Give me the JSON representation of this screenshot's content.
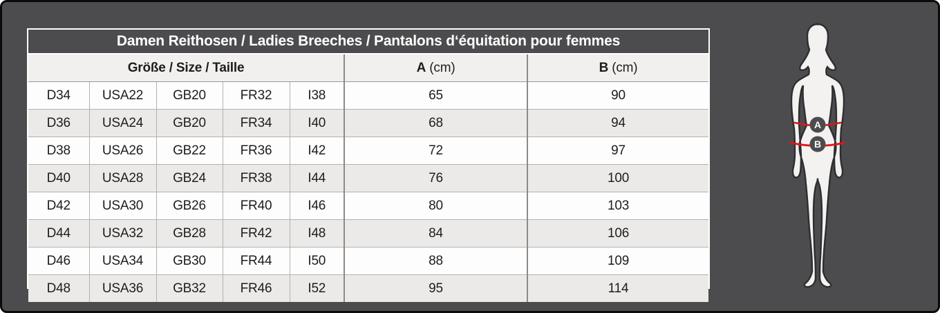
{
  "table": {
    "title": "Damen Reithosen / Ladies Breeches / Pantalons d‘équitation pour femmes",
    "header": {
      "size_label": "Größe / Size / Taille",
      "a_label": "A",
      "a_unit": "(cm)",
      "b_label": "B",
      "b_unit": "(cm)"
    },
    "rows": [
      {
        "d": "D34",
        "usa": "USA22",
        "gb": "GB20",
        "fr": "FR32",
        "i": "I38",
        "a": "65",
        "b": "90"
      },
      {
        "d": "D36",
        "usa": "USA24",
        "gb": "GB20",
        "fr": "FR34",
        "i": "I40",
        "a": "68",
        "b": "94"
      },
      {
        "d": "D38",
        "usa": "USA26",
        "gb": "GB22",
        "fr": "FR36",
        "i": "I42",
        "a": "72",
        "b": "97"
      },
      {
        "d": "D40",
        "usa": "USA28",
        "gb": "GB24",
        "fr": "FR38",
        "i": "I44",
        "a": "76",
        "b": "100"
      },
      {
        "d": "D42",
        "usa": "USA30",
        "gb": "GB26",
        "fr": "FR40",
        "i": "I46",
        "a": "80",
        "b": "103"
      },
      {
        "d": "D44",
        "usa": "USA32",
        "gb": "GB28",
        "fr": "FR42",
        "i": "I48",
        "a": "84",
        "b": "106"
      },
      {
        "d": "D46",
        "usa": "USA34",
        "gb": "GB30",
        "fr": "FR44",
        "i": "I50",
        "a": "88",
        "b": "109"
      },
      {
        "d": "D48",
        "usa": "USA36",
        "gb": "GB32",
        "fr": "FR46",
        "i": "I52",
        "a": "95",
        "b": "114"
      }
    ]
  },
  "figure": {
    "marker_a": "A",
    "marker_b": "B"
  },
  "colors": {
    "background_dark": "#4c4c4e",
    "measure_line_red": "#e01419",
    "body_fill": "#f3f2f0",
    "row_alt": "#eceae8",
    "table_border_white": "#ffffff"
  }
}
